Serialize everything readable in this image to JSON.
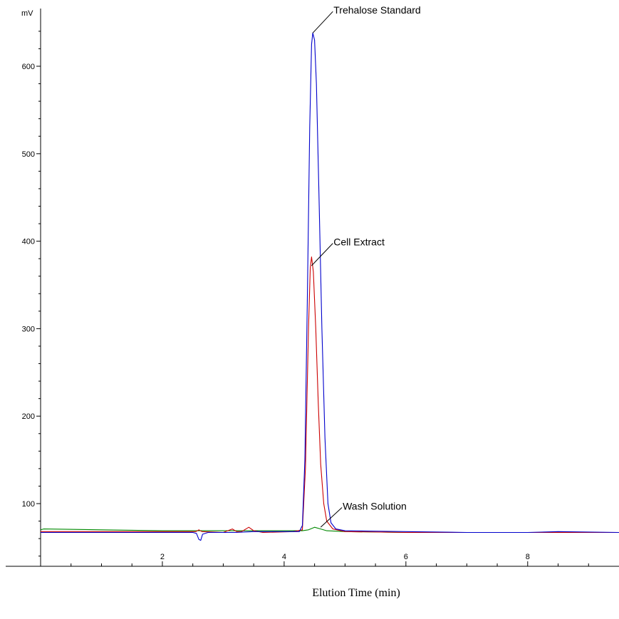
{
  "chart_data": {
    "type": "line",
    "title": "",
    "xlabel": "Elution Time (min)",
    "ylabel": "mV",
    "xlim": [
      0,
      9.5
    ],
    "ylim": [
      -5,
      650
    ],
    "x_ticks": [
      2,
      4,
      6,
      8
    ],
    "y_ticks": [
      100,
      200,
      300,
      400,
      500,
      600
    ],
    "grid": false,
    "series": [
      {
        "name": "Trehalose Standard",
        "color": "#0000cc",
        "points": [
          [
            0,
            67
          ],
          [
            2.5,
            67
          ],
          [
            2.56,
            66
          ],
          [
            2.6,
            59
          ],
          [
            2.63,
            58
          ],
          [
            2.66,
            65
          ],
          [
            2.75,
            67
          ],
          [
            3.2,
            67
          ],
          [
            3.5,
            68
          ],
          [
            4.1,
            68
          ],
          [
            4.25,
            68
          ],
          [
            4.3,
            75
          ],
          [
            4.34,
            150
          ],
          [
            4.38,
            330
          ],
          [
            4.42,
            530
          ],
          [
            4.45,
            625
          ],
          [
            4.47,
            638
          ],
          [
            4.5,
            630
          ],
          [
            4.53,
            580
          ],
          [
            4.57,
            460
          ],
          [
            4.62,
            300
          ],
          [
            4.67,
            175
          ],
          [
            4.72,
            100
          ],
          [
            4.77,
            78
          ],
          [
            4.85,
            71
          ],
          [
            5,
            69
          ],
          [
            6,
            68
          ],
          [
            7,
            67
          ],
          [
            8,
            67
          ],
          [
            8.5,
            68
          ],
          [
            9.5,
            67
          ]
        ]
      },
      {
        "name": "Cell Extract",
        "color": "#cc0000",
        "points": [
          [
            0,
            68
          ],
          [
            2.55,
            68
          ],
          [
            2.6,
            70
          ],
          [
            2.65,
            68
          ],
          [
            3.0,
            67
          ],
          [
            3.15,
            71
          ],
          [
            3.22,
            68
          ],
          [
            3.3,
            68
          ],
          [
            3.42,
            73
          ],
          [
            3.5,
            69
          ],
          [
            3.65,
            67
          ],
          [
            4.15,
            68
          ],
          [
            4.3,
            70
          ],
          [
            4.35,
            140
          ],
          [
            4.4,
            300
          ],
          [
            4.43,
            370
          ],
          [
            4.45,
            382
          ],
          [
            4.48,
            365
          ],
          [
            4.52,
            300
          ],
          [
            4.56,
            215
          ],
          [
            4.6,
            145
          ],
          [
            4.65,
            100
          ],
          [
            4.7,
            80
          ],
          [
            4.8,
            71
          ],
          [
            5,
            68
          ],
          [
            6,
            67
          ],
          [
            7,
            67
          ],
          [
            8,
            67
          ],
          [
            9.5,
            67
          ]
        ]
      },
      {
        "name": "Wash Solution",
        "color": "#008800",
        "points": [
          [
            0,
            70
          ],
          [
            0.05,
            71
          ],
          [
            1,
            70
          ],
          [
            2,
            69
          ],
          [
            3,
            69
          ],
          [
            4,
            69
          ],
          [
            4.3,
            69
          ],
          [
            4.4,
            70
          ],
          [
            4.5,
            73
          ],
          [
            4.6,
            71
          ],
          [
            4.7,
            69
          ],
          [
            5,
            68
          ],
          [
            6,
            67
          ],
          [
            7,
            67
          ],
          [
            8,
            67
          ],
          [
            9.5,
            67
          ]
        ]
      }
    ],
    "annotations": [
      {
        "text": "Trehalose Standard",
        "target": [
          4.47,
          638
        ],
        "label_at": [
          4.8,
          665
        ]
      },
      {
        "text": "Cell Extract",
        "target": [
          4.45,
          372
        ],
        "label_at": [
          4.8,
          400
        ]
      },
      {
        "text": "Wash Solution",
        "target": [
          4.6,
          73
        ],
        "label_at": [
          4.95,
          98
        ]
      }
    ]
  }
}
